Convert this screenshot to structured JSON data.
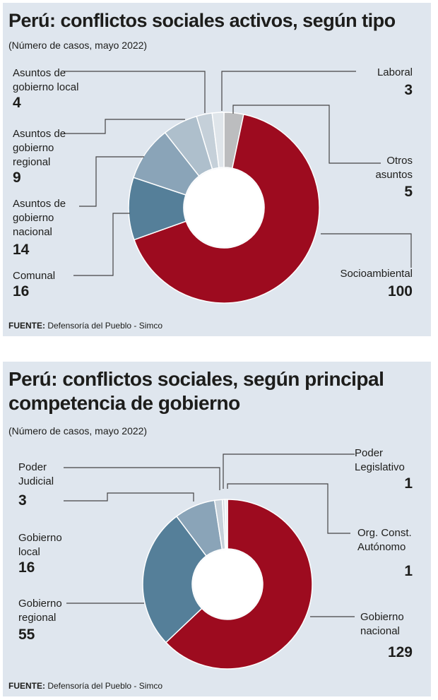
{
  "source_prefix": "FUENTE:",
  "source_text": " Defensoría del Pueblo - Simco",
  "charts": [
    {
      "title": "Perú: conflictos sociales activos, según tipo",
      "subtitle": "(Número de casos, mayo 2022)"
    },
    {
      "title": "Perú: conflictos sociales, según principal competencia de gobierno",
      "subtitle": "(Número de casos, mayo 2022)"
    }
  ],
  "chart_data": [
    {
      "type": "pie",
      "variant": "donut",
      "title": "Perú: conflictos sociales activos, según tipo",
      "subtitle": "(Número de casos, mayo 2022)",
      "start": "12 o'clock, clockwise",
      "slices": [
        {
          "label": "Otros asuntos",
          "value": 5,
          "color": "#bcbdbf"
        },
        {
          "label": "Socioambiental",
          "value": 100,
          "color": "#9d0b1f"
        },
        {
          "label": "Comunal",
          "value": 16,
          "color": "#557f99"
        },
        {
          "label": "Asuntos de gobierno nacional",
          "value": 14,
          "color": "#8aa4b8"
        },
        {
          "label": "Asuntos de gobierno regional",
          "value": 9,
          "color": "#aebfcc"
        },
        {
          "label": "Asuntos de gobierno local",
          "value": 4,
          "color": "#c5d0d9"
        },
        {
          "label": "Laboral",
          "value": 3,
          "color": "#dfe5ea"
        }
      ]
    },
    {
      "type": "pie",
      "variant": "donut",
      "title": "Perú: conflictos sociales, según principal competencia de gobierno",
      "subtitle": "(Número de casos, mayo 2022)",
      "start": "12 o'clock, clockwise",
      "slices": [
        {
          "label": "Gobierno nacional",
          "value": 129,
          "color": "#9d0b1f"
        },
        {
          "label": "Gobierno regional",
          "value": 55,
          "color": "#557f99"
        },
        {
          "label": "Gobierno local",
          "value": 16,
          "color": "#8aa4b8"
        },
        {
          "label": "Poder Judicial",
          "value": 3,
          "color": "#c5d0d9"
        },
        {
          "label": "Org. Const. Autónomo",
          "value": 1,
          "color": "#d4dce3"
        },
        {
          "label": "Poder Legislativo",
          "value": 1,
          "color": "#e6ebef"
        }
      ]
    }
  ],
  "labels1": {
    "local": {
      "text": "Asuntos de\ngobierno local",
      "value": "4"
    },
    "regional": {
      "text": "Asuntos de\ngobierno\nregional",
      "value": "9"
    },
    "nacional": {
      "text": "Asuntos de\ngobierno\nnacional",
      "value": "14"
    },
    "comunal": {
      "text": "Comunal",
      "value": "16"
    },
    "laboral": {
      "text": "Laboral",
      "value": "3"
    },
    "otros": {
      "text": "Otros\nasuntos",
      "value": "5"
    },
    "socio": {
      "text": "Socioambiental",
      "value": "100"
    }
  },
  "labels2": {
    "judicial": {
      "text": "Poder\nJudicial",
      "value": "3"
    },
    "local": {
      "text": "Gobierno\nlocal",
      "value": "16"
    },
    "regional": {
      "text": "Gobierno\nregional",
      "value": "55"
    },
    "legislativo": {
      "text": "Poder\nLegislativo",
      "value": "1"
    },
    "autonomo": {
      "text": "Org. Const.\nAutónomo",
      "value": "1"
    },
    "nacional": {
      "text": "Gobierno\nnacional",
      "value": "129"
    }
  }
}
